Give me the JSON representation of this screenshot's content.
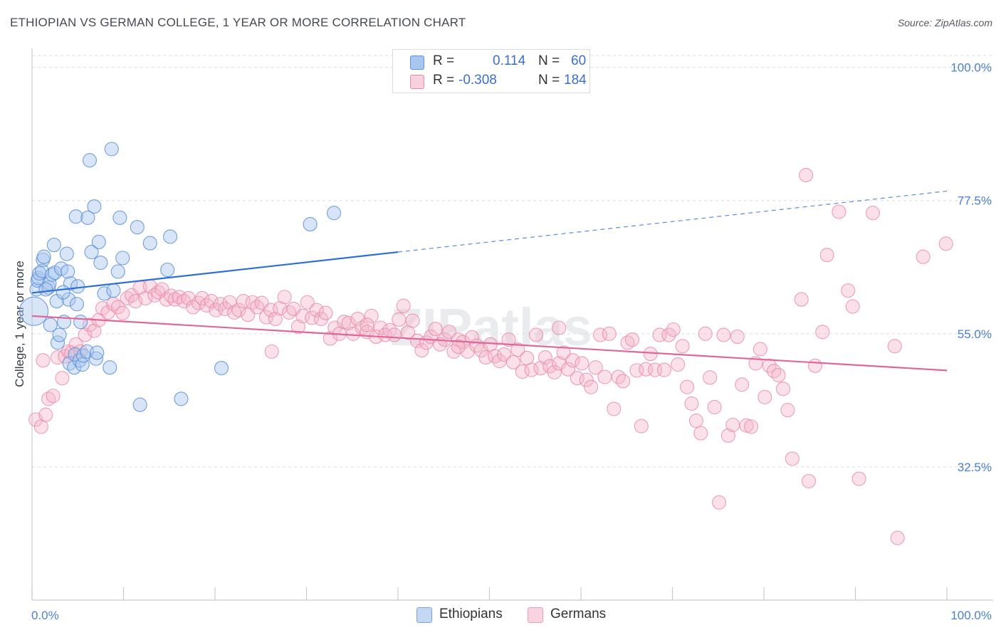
{
  "header": {
    "title": "ETHIOPIAN VS GERMAN COLLEGE, 1 YEAR OR MORE CORRELATION CHART",
    "source": "Source: ZipAtlas.com"
  },
  "legend": {
    "rows": [
      {
        "r_label": "R =",
        "r_value": "0.114",
        "n_label": "N =",
        "n_value": "60"
      },
      {
        "r_label": "R =",
        "r_value": "-0.308",
        "n_label": "N =",
        "n_value": "184"
      }
    ]
  },
  "watermark": "ZIPatlas",
  "colors": {
    "ethiopians_fill": "#a9c6ee",
    "ethiopians_stroke": "#5b8fd6",
    "ethiopians_line": "#2f6fd0",
    "germans_fill": "#f4b6c9",
    "germans_stroke": "#e889a8",
    "germans_line": "#e0679a",
    "tick_label": "#4a7fd4",
    "grid": "#d9dce1"
  },
  "chart_data": {
    "type": "scatter",
    "title": "ETHIOPIAN VS GERMAN COLLEGE, 1 YEAR OR MORE CORRELATION CHART",
    "xlabel": "",
    "ylabel": "College, 1 year or more",
    "xlim": [
      0,
      100
    ],
    "ylim": [
      10,
      102
    ],
    "x_tick_labels": [
      "0.0%",
      "100.0%"
    ],
    "y_ticks": [
      32.5,
      55.0,
      77.5,
      100.0
    ],
    "y_tick_labels": [
      "32.5%",
      "55.0%",
      "77.5%",
      "100.0%"
    ],
    "grid": true,
    "legend_position": "bottom-center",
    "series": [
      {
        "name": "Ethiopians",
        "R": 0.114,
        "N": 60,
        "trend": {
          "x0": 0,
          "y0": 61.9,
          "x1": 40,
          "y1": 68.8,
          "dash_to_x": 100,
          "dash_to_y": 79.1
        },
        "points": [
          [
            0.2,
            58.8
          ],
          [
            0.5,
            62.5
          ],
          [
            0.6,
            64.0
          ],
          [
            0.7,
            64.4
          ],
          [
            0.8,
            65.2
          ],
          [
            1.1,
            65.6
          ],
          [
            1.2,
            67.5
          ],
          [
            1.3,
            68.0
          ],
          [
            1.8,
            62.8
          ],
          [
            1.9,
            63.5
          ],
          [
            2.0,
            56.5
          ],
          [
            2.2,
            65.0
          ],
          [
            2.4,
            70.0
          ],
          [
            2.5,
            65.3
          ],
          [
            2.8,
            53.5
          ],
          [
            3.0,
            54.8
          ],
          [
            3.2,
            66.0
          ],
          [
            3.5,
            57.0
          ],
          [
            3.8,
            68.5
          ],
          [
            3.9,
            65.5
          ],
          [
            4.0,
            60.8
          ],
          [
            4.1,
            50.0
          ],
          [
            4.2,
            63.5
          ],
          [
            4.6,
            49.3
          ],
          [
            4.7,
            51.5
          ],
          [
            4.8,
            74.8
          ],
          [
            4.9,
            60.0
          ],
          [
            5.0,
            63.0
          ],
          [
            5.2,
            50.5
          ],
          [
            5.3,
            57.0
          ],
          [
            5.5,
            49.8
          ],
          [
            5.6,
            51.3
          ],
          [
            6.0,
            52.0
          ],
          [
            6.1,
            74.6
          ],
          [
            6.3,
            84.3
          ],
          [
            6.5,
            68.8
          ],
          [
            6.8,
            76.5
          ],
          [
            7.0,
            50.8
          ],
          [
            7.1,
            51.8
          ],
          [
            7.3,
            70.5
          ],
          [
            7.5,
            67.0
          ],
          [
            7.9,
            61.8
          ],
          [
            8.5,
            49.3
          ],
          [
            8.7,
            86.2
          ],
          [
            8.9,
            62.3
          ],
          [
            9.4,
            65.5
          ],
          [
            9.6,
            74.6
          ],
          [
            9.9,
            67.8
          ],
          [
            11.5,
            73.0
          ],
          [
            11.8,
            43.0
          ],
          [
            12.9,
            70.3
          ],
          [
            14.8,
            65.8
          ],
          [
            15.1,
            71.4
          ],
          [
            16.3,
            44.0
          ],
          [
            20.7,
            49.2
          ],
          [
            30.4,
            73.5
          ],
          [
            33.0,
            75.4
          ],
          [
            1.5,
            62.5
          ],
          [
            2.7,
            60.5
          ],
          [
            3.4,
            62.0
          ]
        ]
      },
      {
        "name": "Germans",
        "R": -0.308,
        "N": 184,
        "trend": {
          "x0": 0,
          "y0": 58.0,
          "x1": 100,
          "y1": 48.8
        },
        "points": [
          [
            0.4,
            40.5
          ],
          [
            1.0,
            39.3
          ],
          [
            1.5,
            41.3
          ],
          [
            1.8,
            44.0
          ],
          [
            2.3,
            44.5
          ],
          [
            2.8,
            51.0
          ],
          [
            3.3,
            47.5
          ],
          [
            3.6,
            51.2
          ],
          [
            4.0,
            52.0
          ],
          [
            4.3,
            51.8
          ],
          [
            4.8,
            53.2
          ],
          [
            5.3,
            52.0
          ],
          [
            5.8,
            54.8
          ],
          [
            6.3,
            56.5
          ],
          [
            6.8,
            55.5
          ],
          [
            7.3,
            57.3
          ],
          [
            7.7,
            59.3
          ],
          [
            8.3,
            58.6
          ],
          [
            8.9,
            60.0
          ],
          [
            9.4,
            59.5
          ],
          [
            9.9,
            58.5
          ],
          [
            10.4,
            61.0
          ],
          [
            10.9,
            61.5
          ],
          [
            11.3,
            60.5
          ],
          [
            11.8,
            62.8
          ],
          [
            12.4,
            61.0
          ],
          [
            12.9,
            63.0
          ],
          [
            13.4,
            61.5
          ],
          [
            13.8,
            62.0
          ],
          [
            14.2,
            62.5
          ],
          [
            14.7,
            60.8
          ],
          [
            15.2,
            61.4
          ],
          [
            15.6,
            60.8
          ],
          [
            16.1,
            61.2
          ],
          [
            16.6,
            60.5
          ],
          [
            17.1,
            61.0
          ],
          [
            17.6,
            59.5
          ],
          [
            18.2,
            60.2
          ],
          [
            18.6,
            61.0
          ],
          [
            19.1,
            59.8
          ],
          [
            19.6,
            60.5
          ],
          [
            20.1,
            59.0
          ],
          [
            20.6,
            60.0
          ],
          [
            21.1,
            59.2
          ],
          [
            21.6,
            60.3
          ],
          [
            22.1,
            58.6
          ],
          [
            22.6,
            59.0
          ],
          [
            23.1,
            60.5
          ],
          [
            23.6,
            58.2
          ],
          [
            24.1,
            60.3
          ],
          [
            24.6,
            59.5
          ],
          [
            25.1,
            60.2
          ],
          [
            25.6,
            57.8
          ],
          [
            26.1,
            59.0
          ],
          [
            26.6,
            57.5
          ],
          [
            27.1,
            59.3
          ],
          [
            27.6,
            61.2
          ],
          [
            28.1,
            58.6
          ],
          [
            28.6,
            59.2
          ],
          [
            29.1,
            56.2
          ],
          [
            29.6,
            58.0
          ],
          [
            30.1,
            60.3
          ],
          [
            30.6,
            57.7
          ],
          [
            31.1,
            59.0
          ],
          [
            31.6,
            57.5
          ],
          [
            32.1,
            58.5
          ],
          [
            32.6,
            54.2
          ],
          [
            33.1,
            56.0
          ],
          [
            33.6,
            55.0
          ],
          [
            34.1,
            57.0
          ],
          [
            34.6,
            56.8
          ],
          [
            35.1,
            55.0
          ],
          [
            35.6,
            57.5
          ],
          [
            36.1,
            56.0
          ],
          [
            36.6,
            55.3
          ],
          [
            37.1,
            58.0
          ],
          [
            37.6,
            54.5
          ],
          [
            38.1,
            56.0
          ],
          [
            38.6,
            54.8
          ],
          [
            39.1,
            55.6
          ],
          [
            39.6,
            54.8
          ],
          [
            40.1,
            57.4
          ],
          [
            40.6,
            59.7
          ],
          [
            41.1,
            55.2
          ],
          [
            41.6,
            57.2
          ],
          [
            42.1,
            53.8
          ],
          [
            42.6,
            52.2
          ],
          [
            43.1,
            53.5
          ],
          [
            43.6,
            54.5
          ],
          [
            44.1,
            55.8
          ],
          [
            44.6,
            53.2
          ],
          [
            45.1,
            54.0
          ],
          [
            45.6,
            55.3
          ],
          [
            46.1,
            52.0
          ],
          [
            46.6,
            54.0
          ],
          [
            47.1,
            53.6
          ],
          [
            47.6,
            52.0
          ],
          [
            48.1,
            54.4
          ],
          [
            48.6,
            53.0
          ],
          [
            49.1,
            52.2
          ],
          [
            49.6,
            51.0
          ],
          [
            50.1,
            53.2
          ],
          [
            50.6,
            51.2
          ],
          [
            51.1,
            50.4
          ],
          [
            51.6,
            51.5
          ],
          [
            52.1,
            54.0
          ],
          [
            52.6,
            50.2
          ],
          [
            53.1,
            52.3
          ],
          [
            53.6,
            48.6
          ],
          [
            54.1,
            50.9
          ],
          [
            54.6,
            48.9
          ],
          [
            55.1,
            54.8
          ],
          [
            55.6,
            49.2
          ],
          [
            56.1,
            51.0
          ],
          [
            56.6,
            49.5
          ],
          [
            57.1,
            48.5
          ],
          [
            57.6,
            50.0
          ],
          [
            58.1,
            51.8
          ],
          [
            58.6,
            49.0
          ],
          [
            59.1,
            50.5
          ],
          [
            59.6,
            47.5
          ],
          [
            60.1,
            50.0
          ],
          [
            60.6,
            47.2
          ],
          [
            61.1,
            46.0
          ],
          [
            61.6,
            49.3
          ],
          [
            62.1,
            54.8
          ],
          [
            62.6,
            47.7
          ],
          [
            63.1,
            55.0
          ],
          [
            63.6,
            42.3
          ],
          [
            64.1,
            47.7
          ],
          [
            64.6,
            47.0
          ],
          [
            65.1,
            53.5
          ],
          [
            65.6,
            54.0
          ],
          [
            66.1,
            48.8
          ],
          [
            66.6,
            39.4
          ],
          [
            67.1,
            49.0
          ],
          [
            67.6,
            51.6
          ],
          [
            68.1,
            48.9
          ],
          [
            68.6,
            54.8
          ],
          [
            69.1,
            48.9
          ],
          [
            69.6,
            54.8
          ],
          [
            70.1,
            55.7
          ],
          [
            70.6,
            49.8
          ],
          [
            71.1,
            52.9
          ],
          [
            71.6,
            46.0
          ],
          [
            72.1,
            43.2
          ],
          [
            72.6,
            40.3
          ],
          [
            73.1,
            38.2
          ],
          [
            73.6,
            55.0
          ],
          [
            74.1,
            47.6
          ],
          [
            74.6,
            42.6
          ],
          [
            75.1,
            26.5
          ],
          [
            75.6,
            54.8
          ],
          [
            76.1,
            37.8
          ],
          [
            76.6,
            39.6
          ],
          [
            77.1,
            54.5
          ],
          [
            77.6,
            46.4
          ],
          [
            78.1,
            39.5
          ],
          [
            78.6,
            39.3
          ],
          [
            79.1,
            50.0
          ],
          [
            79.6,
            52.4
          ],
          [
            80.1,
            44.3
          ],
          [
            80.6,
            49.6
          ],
          [
            81.1,
            48.7
          ],
          [
            81.6,
            48.0
          ],
          [
            82.1,
            45.7
          ],
          [
            82.6,
            42.1
          ],
          [
            83.1,
            33.9
          ],
          [
            84.1,
            60.8
          ],
          [
            84.6,
            81.8
          ],
          [
            84.9,
            30.1
          ],
          [
            85.6,
            49.6
          ],
          [
            86.4,
            55.3
          ],
          [
            86.9,
            68.3
          ],
          [
            88.2,
            75.6
          ],
          [
            89.2,
            62.3
          ],
          [
            89.7,
            59.6
          ],
          [
            90.4,
            30.5
          ],
          [
            91.9,
            75.4
          ],
          [
            94.3,
            52.9
          ],
          [
            94.6,
            20.5
          ],
          [
            97.4,
            68.0
          ],
          [
            99.9,
            70.2
          ],
          [
            1.2,
            50.5
          ],
          [
            26.2,
            52.0
          ],
          [
            36.6,
            56.5
          ],
          [
            46.6,
            52.8
          ],
          [
            57.6,
            56.0
          ]
        ]
      }
    ]
  }
}
